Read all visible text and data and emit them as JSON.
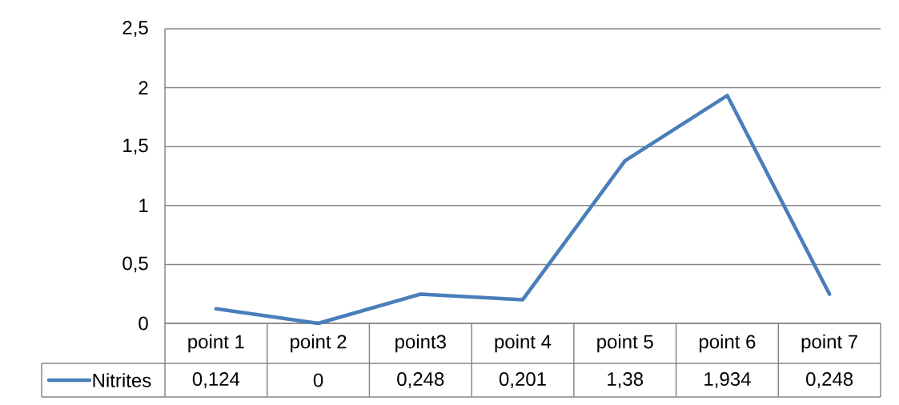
{
  "chart_data": {
    "type": "line",
    "categories": [
      "point 1",
      "point 2",
      "point3",
      "point 4",
      "point 5",
      "point 6",
      "point 7"
    ],
    "series": [
      {
        "name": "Nitrites",
        "color": "#4a7ebb",
        "values": [
          0.124,
          0,
          0.248,
          0.201,
          1.38,
          1.934,
          0.248
        ],
        "value_labels": [
          "0,124",
          "0",
          "0,248",
          "0,201",
          "1,38",
          "1,934",
          "0,248"
        ]
      }
    ],
    "ylim": [
      0,
      2.5
    ],
    "yticks": [
      0,
      {
        "value": 0.5,
        "label": "0,5"
      },
      1,
      {
        "value": 1.5,
        "label": "1,5"
      },
      2,
      {
        "value": 2.5,
        "label": "2,5"
      }
    ],
    "grid": "y"
  }
}
